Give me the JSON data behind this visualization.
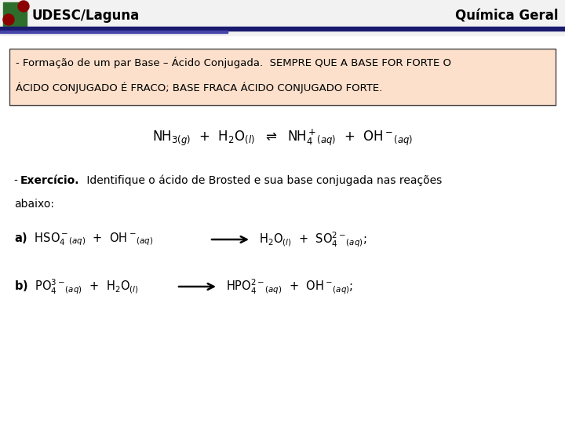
{
  "title": "Química Geral",
  "bg_color": "#ffffff",
  "box_bg": "#fde0cc",
  "box_border": "#555555",
  "box_text_line1": "- Formação de um par Base – Ácido Conjugada.  SEMPRE QUE A BASE FOR FORTE O",
  "box_text_line2": "ÁCIDO CONJUGADO É FRACO; BASE FRACA ÁCIDO CONJUGADO FORTE.",
  "udesc_text": "UDESC/Laguna",
  "header_line1_color": "#1a1a6e",
  "header_line2_color": "#4444aa",
  "fig_width": 7.2,
  "fig_height": 5.4,
  "dpi": 100
}
